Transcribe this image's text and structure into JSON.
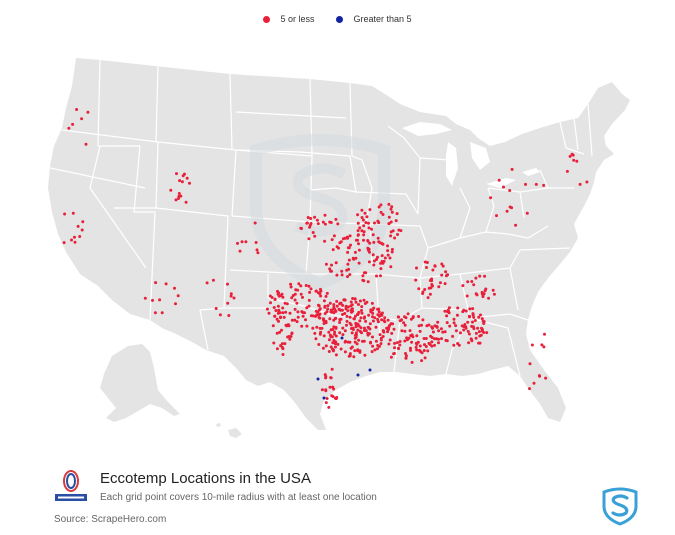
{
  "legend": {
    "items": [
      {
        "label": "5 or less",
        "color": "#e8203a"
      },
      {
        "label": "Greater than 5",
        "color": "#1224a3"
      }
    ]
  },
  "map": {
    "land_color": "#e4e4e4",
    "border_color": "#ffffff",
    "watermark_color": "#d6dbe0",
    "point_color_low": "#e8203a",
    "point_color_high": "#1224a3"
  },
  "footer": {
    "logo_text": "ECCOTEMP",
    "title": "Eccotemp Locations in the USA",
    "subtitle": "Each grid point covers 10-mile radius with at least one location",
    "source": "Source: ScrapeHero.com",
    "scrapehero_color": "#3aa0d8"
  }
}
